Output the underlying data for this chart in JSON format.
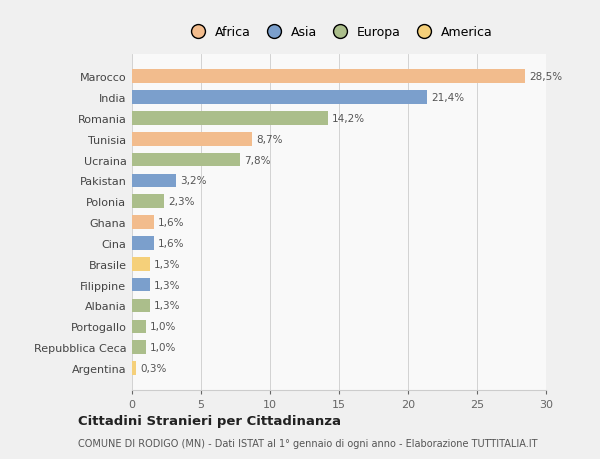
{
  "countries": [
    "Marocco",
    "India",
    "Romania",
    "Tunisia",
    "Ucraina",
    "Pakistan",
    "Polonia",
    "Ghana",
    "Cina",
    "Brasile",
    "Filippine",
    "Albania",
    "Portogallo",
    "Repubblica Ceca",
    "Argentina"
  ],
  "values": [
    28.5,
    21.4,
    14.2,
    8.7,
    7.8,
    3.2,
    2.3,
    1.6,
    1.6,
    1.3,
    1.3,
    1.3,
    1.0,
    1.0,
    0.3
  ],
  "labels": [
    "28,5%",
    "21,4%",
    "14,2%",
    "8,7%",
    "7,8%",
    "3,2%",
    "2,3%",
    "1,6%",
    "1,6%",
    "1,3%",
    "1,3%",
    "1,3%",
    "1,0%",
    "1,0%",
    "0,3%"
  ],
  "colors": [
    "#F2BC8D",
    "#7B9FCC",
    "#ABBE8B",
    "#F2BC8D",
    "#ABBE8B",
    "#7B9FCC",
    "#ABBE8B",
    "#F2BC8D",
    "#7B9FCC",
    "#F5D07A",
    "#7B9FCC",
    "#ABBE8B",
    "#ABBE8B",
    "#ABBE8B",
    "#F5D07A"
  ],
  "continents": [
    "Africa",
    "Asia",
    "Europa",
    "America"
  ],
  "legend_colors": [
    "#F2BC8D",
    "#7B9FCC",
    "#ABBE8B",
    "#F5D07A"
  ],
  "title": "Cittadini Stranieri per Cittadinanza",
  "subtitle": "COMUNE DI RODIGO (MN) - Dati ISTAT al 1° gennaio di ogni anno - Elaborazione TUTTITALIA.IT",
  "xlim": [
    0,
    30
  ],
  "xticks": [
    0,
    5,
    10,
    15,
    20,
    25,
    30
  ],
  "background_color": "#f0f0f0",
  "plot_bg_color": "#f9f9f9"
}
